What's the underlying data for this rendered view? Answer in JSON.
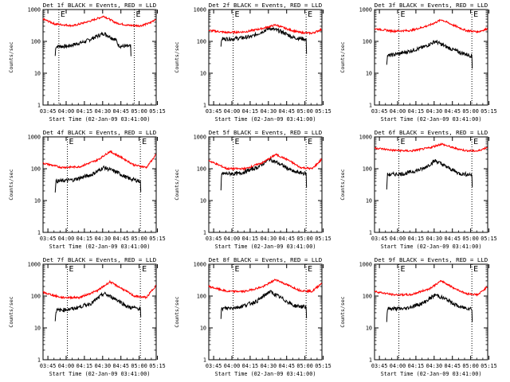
{
  "figure": {
    "colors": {
      "background": "#ffffff",
      "axes": "#000000",
      "events": "#000000",
      "lld": "#ff0000"
    },
    "xlabel": "Start Time (02-Jan-09 03:41:00)",
    "ylabel": "Counts/sec",
    "marker_label": "E"
  },
  "chart_data": [
    {
      "type": "line",
      "title": "Det 1f BLACK = Events, RED = LLD",
      "xlabel": "Start Time (02-Jan-09 03:41:00)",
      "ylabel": "Counts/sec",
      "x_ticks": [
        "03:45",
        "04:00",
        "04:15",
        "04:30",
        "04:45",
        "05:00",
        "05:15"
      ],
      "y_ticks": [
        "1",
        "10",
        "100",
        "1000"
      ],
      "ylim": [
        1,
        1000
      ],
      "y_scale": "log",
      "x_range_minutes": [
        0,
        93
      ],
      "markers_minutes": [
        13,
        75
      ],
      "marker_labels": [
        "E",
        "E"
      ],
      "series": [
        {
          "name": "Events",
          "color": "#000000",
          "x": [
            10,
            10.5,
            20,
            35,
            50,
            60,
            62,
            65,
            70,
            72,
            72.5
          ],
          "y": [
            35,
            70,
            70,
            100,
            180,
            110,
            75,
            70,
            70,
            70,
            20
          ]
        },
        {
          "name": "LLD",
          "color": "#ff0000",
          "x": [
            0,
            10,
            25,
            40,
            50,
            60,
            70,
            80,
            88,
            93
          ],
          "y": [
            500,
            350,
            310,
            450,
            620,
            380,
            320,
            310,
            380,
            520
          ]
        }
      ]
    },
    {
      "type": "line",
      "title": "Det 2f BLACK = Events, RED = LLD",
      "xlabel": "Start Time (02-Jan-09 03:41:00)",
      "ylabel": "Counts/sec",
      "x_ticks": [
        "03:45",
        "04:00",
        "04:15",
        "04:30",
        "04:45",
        "05:00",
        "05:15"
      ],
      "y_ticks": [
        "1",
        "10",
        "100",
        "1000"
      ],
      "ylim": [
        1,
        1000
      ],
      "y_scale": "log",
      "x_range_minutes": [
        0,
        93
      ],
      "markers_minutes": [
        20,
        80
      ],
      "marker_labels": [
        "E",
        "E"
      ],
      "series": [
        {
          "name": "Events",
          "color": "#000000",
          "x": [
            10,
            10.5,
            20,
            35,
            50,
            60,
            70,
            78,
            80,
            80.5
          ],
          "y": [
            60,
            120,
            120,
            140,
            260,
            200,
            130,
            120,
            110,
            30
          ]
        },
        {
          "name": "LLD",
          "color": "#ff0000",
          "x": [
            0,
            15,
            30,
            45,
            55,
            65,
            75,
            85,
            93
          ],
          "y": [
            220,
            190,
            200,
            260,
            330,
            240,
            190,
            180,
            240
          ]
        }
      ]
    },
    {
      "type": "line",
      "title": "Det 3f BLACK = Events, RED = LLD",
      "xlabel": "Start Time (02-Jan-09 03:41:00)",
      "ylabel": "Counts/sec",
      "x_ticks": [
        "03:45",
        "04:00",
        "04:15",
        "04:30",
        "04:45",
        "05:00",
        "05:15"
      ],
      "y_ticks": [
        "1",
        "10",
        "100",
        "1000"
      ],
      "ylim": [
        1,
        1000
      ],
      "y_scale": "log",
      "x_range_minutes": [
        0,
        93
      ],
      "markers_minutes": [
        20,
        80
      ],
      "marker_labels": [
        "E",
        "E"
      ],
      "series": [
        {
          "name": "Events",
          "color": "#000000",
          "x": [
            10,
            10.5,
            25,
            40,
            50,
            60,
            70,
            80,
            80.5
          ],
          "y": [
            20,
            35,
            45,
            65,
            100,
            65,
            45,
            35,
            10
          ]
        },
        {
          "name": "LLD",
          "color": "#ff0000",
          "x": [
            0,
            15,
            30,
            45,
            55,
            65,
            75,
            85,
            93
          ],
          "y": [
            250,
            210,
            220,
            320,
            480,
            320,
            220,
            200,
            250
          ]
        }
      ]
    },
    {
      "type": "line",
      "title": "Det 4f BLACK = Events, RED = LLD",
      "xlabel": "Start Time (02-Jan-09 03:41:00)",
      "ylabel": "Counts/sec",
      "x_ticks": [
        "03:45",
        "04:00",
        "04:15",
        "04:30",
        "04:45",
        "05:00",
        "05:15"
      ],
      "y_ticks": [
        "1",
        "10",
        "100",
        "1000"
      ],
      "ylim": [
        1,
        1000
      ],
      "y_scale": "log",
      "x_range_minutes": [
        0,
        93
      ],
      "markers_minutes": [
        20,
        80
      ],
      "marker_labels": [
        "E",
        "E"
      ],
      "series": [
        {
          "name": "Events",
          "color": "#000000",
          "x": [
            10,
            10.5,
            25,
            40,
            50,
            60,
            70,
            78,
            80,
            80.5
          ],
          "y": [
            20,
            40,
            45,
            65,
            110,
            80,
            50,
            42,
            40,
            15
          ]
        },
        {
          "name": "LLD",
          "color": "#ff0000",
          "x": [
            0,
            15,
            30,
            45,
            55,
            65,
            75,
            85,
            93
          ],
          "y": [
            150,
            110,
            115,
            190,
            350,
            220,
            130,
            110,
            280
          ]
        }
      ]
    },
    {
      "type": "line",
      "title": "Det 5f BLACK = Events, RED = LLD",
      "xlabel": "Start Time (02-Jan-09 03:41:00)",
      "ylabel": "Counts/sec",
      "x_ticks": [
        "03:45",
        "04:00",
        "04:15",
        "04:30",
        "04:45",
        "05:00",
        "05:15"
      ],
      "y_ticks": [
        "1",
        "10",
        "100",
        "1000"
      ],
      "ylim": [
        1,
        1000
      ],
      "y_scale": "log",
      "x_range_minutes": [
        0,
        93
      ],
      "markers_minutes": [
        20,
        80
      ],
      "marker_labels": [
        "E",
        "E"
      ],
      "series": [
        {
          "name": "Events",
          "color": "#000000",
          "x": [
            10,
            10.5,
            25,
            40,
            50,
            60,
            70,
            80,
            80.5
          ],
          "y": [
            20,
            70,
            70,
            110,
            200,
            130,
            80,
            70,
            15
          ]
        },
        {
          "name": "LLD",
          "color": "#ff0000",
          "x": [
            0,
            15,
            30,
            45,
            55,
            65,
            75,
            85,
            93
          ],
          "y": [
            180,
            100,
            100,
            160,
            280,
            190,
            110,
            100,
            200
          ]
        }
      ]
    },
    {
      "type": "line",
      "title": "Det 6f BLACK = Events, RED = LLD",
      "xlabel": "Start Time (02-Jan-09 03:41:00)",
      "ylabel": "Counts/sec",
      "x_ticks": [
        "03:45",
        "04:00",
        "04:15",
        "04:30",
        "04:45",
        "05:00",
        "05:15"
      ],
      "y_ticks": [
        "1",
        "10",
        "100",
        "1000"
      ],
      "ylim": [
        1,
        1000
      ],
      "y_scale": "log",
      "x_range_minutes": [
        0,
        93
      ],
      "markers_minutes": [
        20,
        80
      ],
      "marker_labels": [
        "E",
        "E"
      ],
      "series": [
        {
          "name": "Events",
          "color": "#000000",
          "x": [
            10,
            10.5,
            25,
            40,
            50,
            60,
            70,
            80,
            80.5
          ],
          "y": [
            20,
            65,
            70,
            100,
            180,
            110,
            70,
            65,
            15
          ]
        },
        {
          "name": "LLD",
          "color": "#ff0000",
          "x": [
            0,
            15,
            30,
            45,
            55,
            65,
            75,
            85,
            93
          ],
          "y": [
            450,
            380,
            360,
            450,
            600,
            450,
            370,
            360,
            480
          ]
        }
      ]
    },
    {
      "type": "line",
      "title": "Det 7f BLACK = Events, RED = LLD",
      "xlabel": "Start Time (02-Jan-09 03:41:00)",
      "ylabel": "Counts/sec",
      "x_ticks": [
        "03:45",
        "04:00",
        "04:15",
        "04:30",
        "04:45",
        "05:00",
        "05:15"
      ],
      "y_ticks": [
        "1",
        "10",
        "100",
        "1000"
      ],
      "ylim": [
        1,
        1000
      ],
      "y_scale": "log",
      "x_range_minutes": [
        0,
        93
      ],
      "markers_minutes": [
        20,
        80
      ],
      "marker_labels": [
        "E",
        "E"
      ],
      "series": [
        {
          "name": "Events",
          "color": "#000000",
          "x": [
            10,
            10.5,
            25,
            40,
            50,
            60,
            70,
            80,
            80.5
          ],
          "y": [
            15,
            35,
            40,
            60,
            120,
            80,
            45,
            40,
            15
          ]
        },
        {
          "name": "LLD",
          "color": "#ff0000",
          "x": [
            0,
            15,
            30,
            45,
            55,
            65,
            75,
            85,
            93
          ],
          "y": [
            130,
            90,
            90,
            150,
            280,
            170,
            100,
            90,
            220
          ]
        }
      ]
    },
    {
      "type": "line",
      "title": "Det 8f BLACK = Events, RED = LLD",
      "xlabel": "Start Time (02-Jan-09 03:41:00)",
      "ylabel": "Counts/sec",
      "x_ticks": [
        "03:45",
        "04:00",
        "04:15",
        "04:30",
        "04:45",
        "05:00",
        "05:15"
      ],
      "y_ticks": [
        "1",
        "10",
        "100",
        "1000"
      ],
      "ylim": [
        1,
        1000
      ],
      "y_scale": "log",
      "x_range_minutes": [
        0,
        93
      ],
      "markers_minutes": [
        20,
        80
      ],
      "marker_labels": [
        "E",
        "E"
      ],
      "series": [
        {
          "name": "Events",
          "color": "#000000",
          "x": [
            10,
            10.5,
            25,
            40,
            50,
            60,
            70,
            80,
            80.5
          ],
          "y": [
            20,
            40,
            45,
            70,
            140,
            85,
            50,
            45,
            15
          ]
        },
        {
          "name": "LLD",
          "color": "#ff0000",
          "x": [
            0,
            15,
            30,
            45,
            55,
            65,
            75,
            85,
            93
          ],
          "y": [
            200,
            140,
            140,
            200,
            330,
            220,
            150,
            140,
            260
          ]
        }
      ]
    },
    {
      "type": "line",
      "title": "Det 9f BLACK = Events, RED = LLD",
      "xlabel": "Start Time (02-Jan-09 03:41:00)",
      "ylabel": "Counts/sec",
      "x_ticks": [
        "03:45",
        "04:00",
        "04:15",
        "04:30",
        "04:45",
        "05:00",
        "05:15"
      ],
      "y_ticks": [
        "1",
        "10",
        "100",
        "1000"
      ],
      "ylim": [
        1,
        1000
      ],
      "y_scale": "log",
      "x_range_minutes": [
        0,
        93
      ],
      "markers_minutes": [
        20,
        80
      ],
      "marker_labels": [
        "E",
        "E"
      ],
      "series": [
        {
          "name": "Events",
          "color": "#000000",
          "x": [
            10,
            10.5,
            25,
            40,
            50,
            60,
            70,
            80,
            80.5
          ],
          "y": [
            15,
            40,
            40,
            60,
            110,
            75,
            45,
            40,
            10
          ]
        },
        {
          "name": "LLD",
          "color": "#ff0000",
          "x": [
            0,
            15,
            30,
            45,
            55,
            65,
            75,
            85,
            93
          ],
          "y": [
            140,
            110,
            110,
            170,
            300,
            180,
            120,
            110,
            200
          ]
        }
      ]
    }
  ]
}
